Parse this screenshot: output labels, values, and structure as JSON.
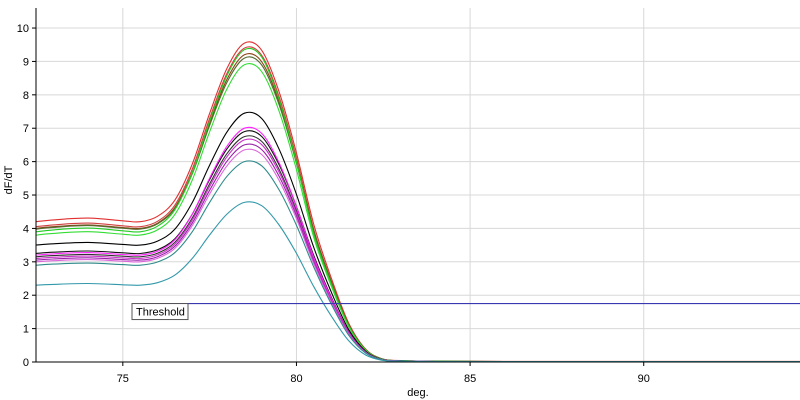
{
  "chart_data": {
    "type": "line",
    "title": "",
    "xlabel": "deg.",
    "ylabel": "dF/dT",
    "xlim": [
      72.5,
      94.5
    ],
    "ylim": [
      0,
      10.6
    ],
    "x_ticks": [
      75,
      80,
      85,
      90
    ],
    "y_ticks": [
      0,
      1,
      2,
      3,
      4,
      5,
      6,
      7,
      8,
      9,
      10
    ],
    "grid": true,
    "legend": "none",
    "threshold": {
      "label": "Threshold",
      "value": 1.75,
      "color": "#3a3ab0"
    },
    "curve_template": {
      "baseline_ref_x": 72.5,
      "baseline_ref_y": 3.0,
      "x": [
        72.5,
        73,
        74,
        75,
        75.5,
        76,
        76.5,
        77,
        77.5,
        78,
        78.5,
        79,
        79.5,
        80,
        80.5,
        81,
        81.5,
        82,
        82.5,
        83,
        84,
        86,
        88,
        90,
        94.5
      ],
      "shape": [
        1.0,
        1.01,
        1.02,
        1.005,
        1.0,
        1.03,
        1.12,
        1.32,
        1.6,
        1.85,
        1.99,
        1.95,
        1.72,
        1.38,
        0.98,
        0.6,
        0.28,
        0.09,
        0.02,
        0.01,
        0.005,
        0.004,
        0.004,
        0.004,
        0.004
      ]
    },
    "series": [
      {
        "color": "#e03030",
        "start": 4.2,
        "peak": 9.55
      },
      {
        "color": "#d04040",
        "start": 4.05,
        "peak": 9.4
      },
      {
        "color": "#8b4513",
        "start": 4.0,
        "peak": 9.2
      },
      {
        "color": "#556b2f",
        "start": 3.98,
        "peak": 9.1
      },
      {
        "color": "#22cc22",
        "start": 3.9,
        "peak": 9.35
      },
      {
        "color": "#33dd33",
        "start": 3.8,
        "peak": 8.9
      },
      {
        "color": "#000000",
        "start": 3.5,
        "peak": 7.45
      },
      {
        "color": "#111111",
        "start": 3.25,
        "peak": 6.9
      },
      {
        "color": "#333333",
        "start": 3.15,
        "peak": 6.75
      },
      {
        "color": "#ff22ff",
        "start": 3.2,
        "peak": 7.0
      },
      {
        "color": "#cc33cc",
        "start": 3.1,
        "peak": 6.65
      },
      {
        "color": "#9922aa",
        "start": 3.05,
        "peak": 6.5
      },
      {
        "color": "#dd66dd",
        "start": 3.0,
        "peak": 6.35
      },
      {
        "color": "#2e8b8b",
        "start": 2.9,
        "peak": 6.0
      },
      {
        "color": "#3399aa",
        "start": 2.3,
        "peak": 4.78
      }
    ]
  }
}
